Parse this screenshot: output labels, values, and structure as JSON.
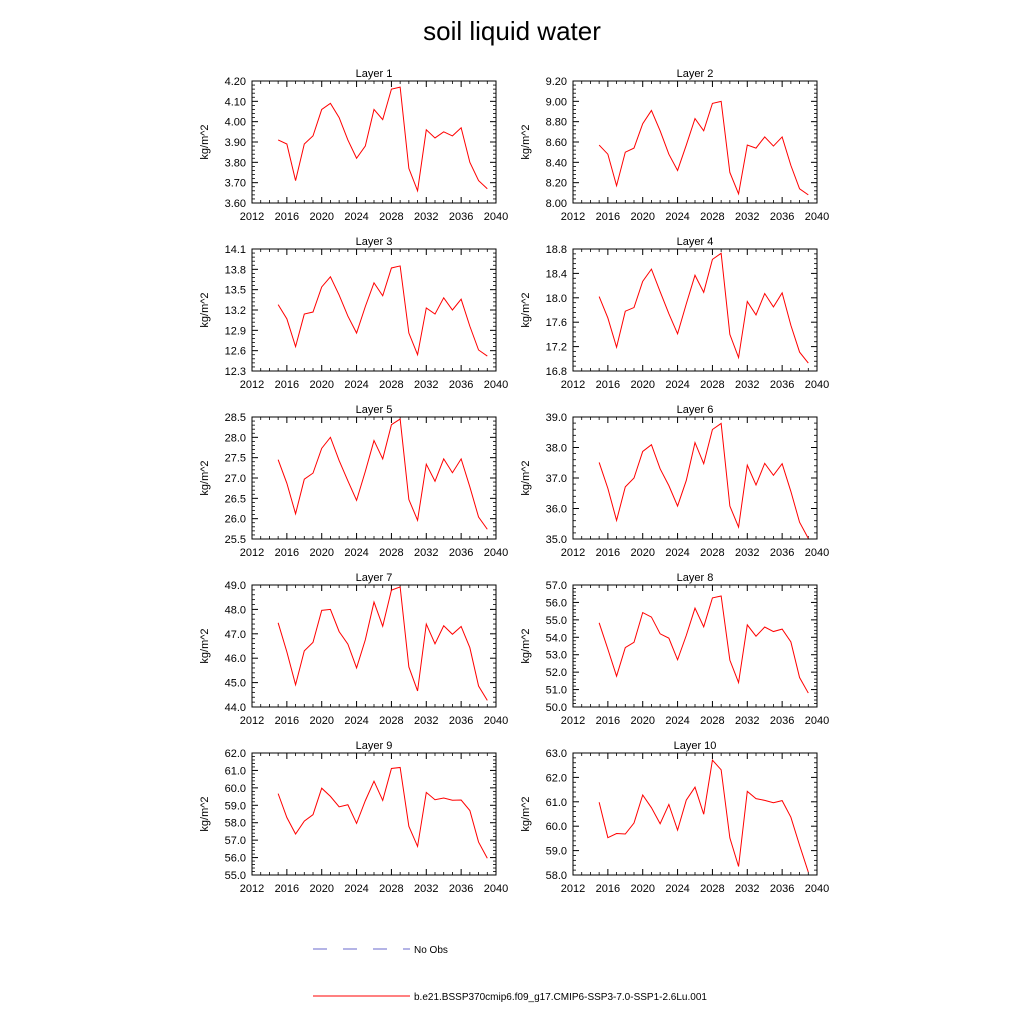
{
  "title": "soil liquid water",
  "series_color": "#ff0000",
  "legend": {
    "entries": [
      {
        "label": "No Obs",
        "color": "#6a6acd",
        "style": "dashed"
      },
      {
        "label": "b.e21.BSSP370cmip6.f09_g17.CMIP6-SSP3-7.0-SSP1-2.6Lu.001",
        "color": "#ff0000",
        "style": "solid"
      }
    ]
  },
  "chart_data": [
    {
      "type": "line",
      "title": "Layer 1",
      "ylabel": "kg/m^2",
      "xlim": [
        2012,
        2040
      ],
      "xticks": [
        "2012",
        "2016",
        "2020",
        "2024",
        "2028",
        "2032",
        "2036",
        "2040"
      ],
      "ylim": [
        3.6,
        4.2
      ],
      "yticks": [
        "3.60",
        "3.70",
        "3.80",
        "3.90",
        "4.00",
        "4.10",
        "4.20"
      ],
      "series": [
        {
          "x": [
            2015,
            2016,
            2017,
            2018,
            2019,
            2020,
            2021,
            2022,
            2023,
            2024,
            2025,
            2026,
            2027,
            2028,
            2029,
            2030,
            2031,
            2032,
            2033,
            2034,
            2035,
            2036,
            2037,
            2038,
            2039
          ],
          "values": [
            3.91,
            3.89,
            3.71,
            3.89,
            3.93,
            4.06,
            4.09,
            4.02,
            3.91,
            3.82,
            3.88,
            4.06,
            4.01,
            4.16,
            4.17,
            3.77,
            3.66,
            3.96,
            3.92,
            3.95,
            3.93,
            3.97,
            3.8,
            3.71,
            3.67
          ]
        }
      ]
    },
    {
      "type": "line",
      "title": "Layer 2",
      "ylabel": "kg/m^2",
      "xlim": [
        2012,
        2040
      ],
      "xticks": [
        "2012",
        "2016",
        "2020",
        "2024",
        "2028",
        "2032",
        "2036",
        "2040"
      ],
      "ylim": [
        8.0,
        9.2
      ],
      "yticks": [
        "8.00",
        "8.20",
        "8.40",
        "8.60",
        "8.80",
        "9.00",
        "9.20"
      ],
      "series": [
        {
          "x": [
            2015,
            2016,
            2017,
            2018,
            2019,
            2020,
            2021,
            2022,
            2023,
            2024,
            2025,
            2026,
            2027,
            2028,
            2029,
            2030,
            2031,
            2032,
            2033,
            2034,
            2035,
            2036,
            2037,
            2038,
            2039
          ],
          "values": [
            8.57,
            8.48,
            8.17,
            8.5,
            8.54,
            8.78,
            8.91,
            8.71,
            8.48,
            8.32,
            8.57,
            8.83,
            8.71,
            8.98,
            9.0,
            8.3,
            8.09,
            8.57,
            8.54,
            8.65,
            8.56,
            8.65,
            8.37,
            8.14,
            8.08
          ]
        }
      ]
    },
    {
      "type": "line",
      "title": "Layer 3",
      "ylabel": "kg/m^2",
      "xlim": [
        2012,
        2040
      ],
      "xticks": [
        "2012",
        "2016",
        "2020",
        "2024",
        "2028",
        "2032",
        "2036",
        "2040"
      ],
      "ylim": [
        12.3,
        14.1
      ],
      "yticks": [
        "12.3",
        "12.6",
        "12.9",
        "13.2",
        "13.5",
        "13.8",
        "14.1"
      ],
      "series": [
        {
          "x": [
            2015,
            2016,
            2017,
            2018,
            2019,
            2020,
            2021,
            2022,
            2023,
            2024,
            2025,
            2026,
            2027,
            2028,
            2029,
            2030,
            2031,
            2032,
            2033,
            2034,
            2035,
            2036,
            2037,
            2038,
            2039
          ],
          "values": [
            13.28,
            13.07,
            12.66,
            13.14,
            13.17,
            13.54,
            13.69,
            13.42,
            13.11,
            12.86,
            13.25,
            13.6,
            13.41,
            13.82,
            13.85,
            12.86,
            12.54,
            13.23,
            13.14,
            13.38,
            13.2,
            13.36,
            12.96,
            12.61,
            12.52
          ]
        }
      ]
    },
    {
      "type": "line",
      "title": "Layer 4",
      "ylabel": "kg/m^2",
      "xlim": [
        2012,
        2040
      ],
      "xticks": [
        "2012",
        "2016",
        "2020",
        "2024",
        "2028",
        "2032",
        "2036",
        "2040"
      ],
      "ylim": [
        16.8,
        18.8
      ],
      "yticks": [
        "16.8",
        "17.2",
        "17.6",
        "18.0",
        "18.4",
        "18.8"
      ],
      "series": [
        {
          "x": [
            2015,
            2016,
            2017,
            2018,
            2019,
            2020,
            2021,
            2022,
            2023,
            2024,
            2025,
            2026,
            2027,
            2028,
            2029,
            2030,
            2031,
            2032,
            2033,
            2034,
            2035,
            2036,
            2037,
            2038,
            2039
          ],
          "values": [
            18.02,
            17.67,
            17.19,
            17.78,
            17.84,
            18.27,
            18.47,
            18.1,
            17.74,
            17.41,
            17.9,
            18.37,
            18.09,
            18.63,
            18.73,
            17.4,
            17.02,
            17.94,
            17.72,
            18.07,
            17.85,
            18.08,
            17.55,
            17.11,
            16.93
          ]
        }
      ]
    },
    {
      "type": "line",
      "title": "Layer 5",
      "ylabel": "kg/m^2",
      "xlim": [
        2012,
        2040
      ],
      "xticks": [
        "2012",
        "2016",
        "2020",
        "2024",
        "2028",
        "2032",
        "2036",
        "2040"
      ],
      "ylim": [
        25.5,
        28.5
      ],
      "yticks": [
        "25.5",
        "26.0",
        "26.5",
        "27.0",
        "27.5",
        "28.0",
        "28.5"
      ],
      "series": [
        {
          "x": [
            2015,
            2016,
            2017,
            2018,
            2019,
            2020,
            2021,
            2022,
            2023,
            2024,
            2025,
            2026,
            2027,
            2028,
            2029,
            2030,
            2031,
            2032,
            2033,
            2034,
            2035,
            2036,
            2037,
            2038,
            2039
          ],
          "values": [
            27.45,
            26.87,
            26.12,
            26.97,
            27.12,
            27.73,
            28.0,
            27.43,
            26.93,
            26.45,
            27.16,
            27.92,
            27.47,
            28.31,
            28.45,
            26.47,
            25.96,
            27.34,
            26.92,
            27.47,
            27.13,
            27.47,
            26.78,
            26.04,
            25.74
          ]
        }
      ]
    },
    {
      "type": "line",
      "title": "Layer 6",
      "ylabel": "kg/m^2",
      "xlim": [
        2012,
        2040
      ],
      "xticks": [
        "2012",
        "2016",
        "2020",
        "2024",
        "2028",
        "2032",
        "2036",
        "2040"
      ],
      "ylim": [
        35.0,
        39.0
      ],
      "yticks": [
        "35.0",
        "36.0",
        "37.0",
        "38.0",
        "39.0"
      ],
      "series": [
        {
          "x": [
            2015,
            2016,
            2017,
            2018,
            2019,
            2020,
            2021,
            2022,
            2023,
            2024,
            2025,
            2026,
            2027,
            2028,
            2029,
            2030,
            2031,
            2032,
            2033,
            2034,
            2035,
            2036,
            2037,
            2038,
            2039
          ],
          "values": [
            37.51,
            36.66,
            35.61,
            36.71,
            37.0,
            37.87,
            38.09,
            37.3,
            36.75,
            36.08,
            36.92,
            38.16,
            37.47,
            38.59,
            38.79,
            36.08,
            35.39,
            37.42,
            36.77,
            37.48,
            37.09,
            37.47,
            36.56,
            35.55,
            35.02
          ]
        }
      ]
    },
    {
      "type": "line",
      "title": "Layer 7",
      "ylabel": "kg/m^2",
      "xlim": [
        2012,
        2040
      ],
      "xticks": [
        "2012",
        "2016",
        "2020",
        "2024",
        "2028",
        "2032",
        "2036",
        "2040"
      ],
      "ylim": [
        44.0,
        49.0
      ],
      "yticks": [
        "44.0",
        "45.0",
        "46.0",
        "47.0",
        "48.0",
        "49.0"
      ],
      "series": [
        {
          "x": [
            2015,
            2016,
            2017,
            2018,
            2019,
            2020,
            2021,
            2022,
            2023,
            2024,
            2025,
            2026,
            2027,
            2028,
            2029,
            2030,
            2031,
            2032,
            2033,
            2034,
            2035,
            2036,
            2037,
            2038,
            2039
          ],
          "values": [
            47.45,
            46.26,
            44.91,
            46.3,
            46.65,
            47.96,
            48.0,
            47.09,
            46.58,
            45.6,
            46.75,
            48.3,
            47.31,
            48.79,
            48.92,
            45.64,
            44.66,
            47.4,
            46.59,
            47.33,
            46.98,
            47.3,
            46.43,
            44.86,
            44.27
          ]
        }
      ]
    },
    {
      "type": "line",
      "title": "Layer 8",
      "ylabel": "kg/m^2",
      "xlim": [
        2012,
        2040
      ],
      "xticks": [
        "2012",
        "2016",
        "2020",
        "2024",
        "2028",
        "2032",
        "2036",
        "2040"
      ],
      "ylim": [
        50.0,
        57.0
      ],
      "yticks": [
        "50.0",
        "51.0",
        "52.0",
        "53.0",
        "54.0",
        "55.0",
        "56.0",
        "57.0"
      ],
      "series": [
        {
          "x": [
            2015,
            2016,
            2017,
            2018,
            2019,
            2020,
            2021,
            2022,
            2023,
            2024,
            2025,
            2026,
            2027,
            2028,
            2029,
            2030,
            2031,
            2032,
            2033,
            2034,
            2035,
            2036,
            2037,
            2038,
            2039
          ],
          "values": [
            54.83,
            53.32,
            51.77,
            53.41,
            53.71,
            55.42,
            55.16,
            54.2,
            53.95,
            52.71,
            54.11,
            55.67,
            54.6,
            56.26,
            56.37,
            52.69,
            51.4,
            54.71,
            54.06,
            54.59,
            54.33,
            54.47,
            53.74,
            51.69,
            50.8
          ]
        }
      ]
    },
    {
      "type": "line",
      "title": "Layer 9",
      "ylabel": "kg/m^2",
      "xlim": [
        2012,
        2040
      ],
      "xticks": [
        "2012",
        "2016",
        "2020",
        "2024",
        "2028",
        "2032",
        "2036",
        "2040"
      ],
      "ylim": [
        55.0,
        62.0
      ],
      "yticks": [
        "55.0",
        "56.0",
        "57.0",
        "58.0",
        "59.0",
        "60.0",
        "61.0",
        "62.0"
      ],
      "series": [
        {
          "x": [
            2015,
            2016,
            2017,
            2018,
            2019,
            2020,
            2021,
            2022,
            2023,
            2024,
            2025,
            2026,
            2027,
            2028,
            2029,
            2030,
            2031,
            2032,
            2033,
            2034,
            2035,
            2036,
            2037,
            2038,
            2039
          ],
          "values": [
            59.67,
            58.3,
            57.35,
            58.09,
            58.46,
            59.98,
            59.51,
            58.91,
            59.03,
            57.96,
            59.26,
            60.38,
            59.28,
            61.11,
            61.17,
            57.79,
            56.64,
            59.74,
            59.32,
            59.42,
            59.29,
            59.3,
            58.7,
            56.89,
            55.96
          ]
        }
      ]
    },
    {
      "type": "line",
      "title": "Layer 10",
      "ylabel": "kg/m^2",
      "xlim": [
        2012,
        2040
      ],
      "xticks": [
        "2012",
        "2016",
        "2020",
        "2024",
        "2028",
        "2032",
        "2036",
        "2040"
      ],
      "ylim": [
        58.0,
        63.0
      ],
      "yticks": [
        "58.0",
        "59.0",
        "60.0",
        "61.0",
        "62.0",
        "63.0"
      ],
      "series": [
        {
          "x": [
            2015,
            2016,
            2017,
            2018,
            2019,
            2020,
            2021,
            2022,
            2023,
            2024,
            2025,
            2026,
            2027,
            2028,
            2029,
            2030,
            2031,
            2032,
            2033,
            2034,
            2035,
            2036,
            2037,
            2038,
            2039
          ],
          "values": [
            60.98,
            59.53,
            59.7,
            59.68,
            60.13,
            61.28,
            60.76,
            60.1,
            60.89,
            59.84,
            61.07,
            61.6,
            60.49,
            62.71,
            62.31,
            59.52,
            58.35,
            61.43,
            61.13,
            61.06,
            60.96,
            61.05,
            60.37,
            59.22,
            58.12
          ]
        }
      ]
    }
  ]
}
